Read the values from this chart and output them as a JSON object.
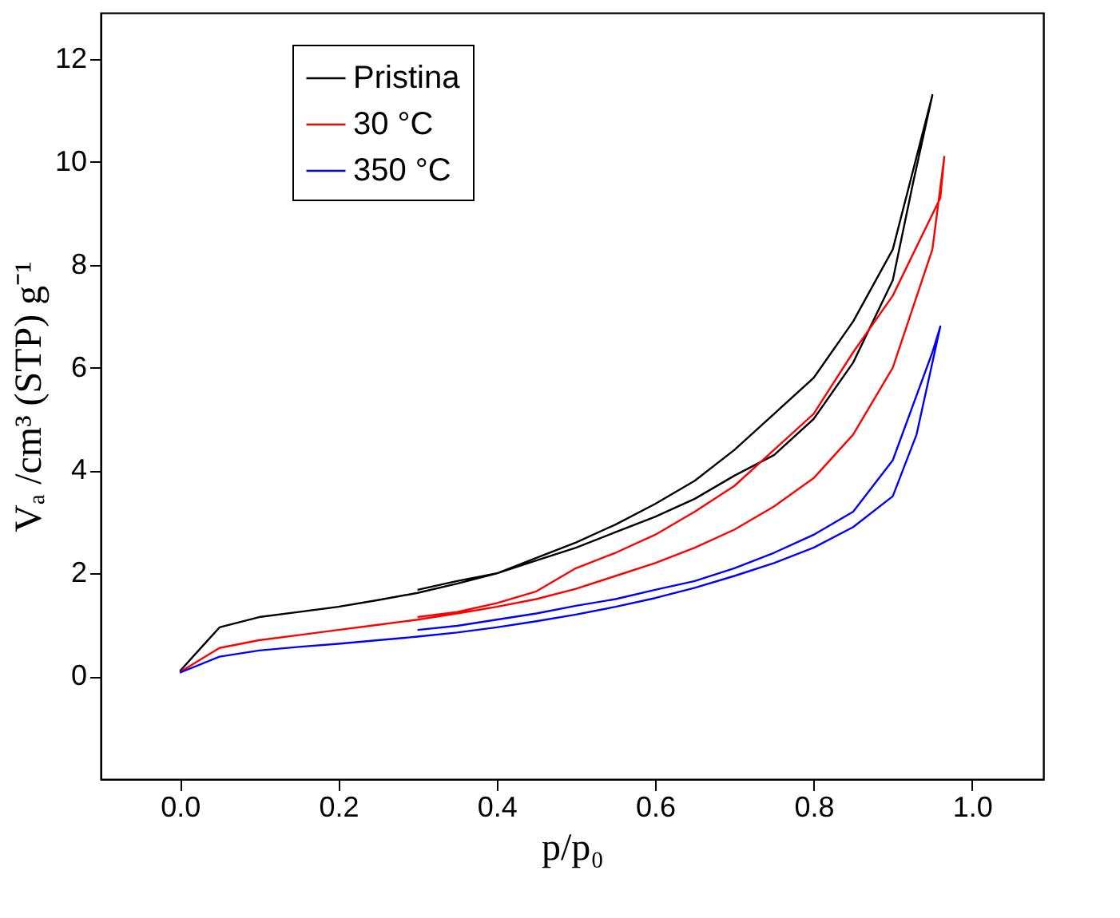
{
  "chart_data": {
    "type": "line",
    "xlabel": "p/p₀",
    "ylabel": "Vₐ /cm³ (STP) g⁻¹",
    "xlim": [
      -0.1,
      1.09
    ],
    "ylim": [
      -2,
      12.9
    ],
    "xticks": [
      {
        "value": 0,
        "label": "0.0"
      },
      0.2,
      0.4,
      0.6,
      0.8,
      {
        "value": 1,
        "label": "1.0"
      }
    ],
    "yticks": [
      0,
      2,
      4,
      6,
      8,
      10,
      12
    ],
    "grid": false,
    "legend": "top left",
    "marker": "none",
    "line_style": "solid",
    "series": [
      {
        "name": "Pristina",
        "color": "#000000",
        "x": [
          0,
          0.05,
          0.1,
          0.15,
          0.2,
          0.25,
          0.3,
          0.35,
          0.4,
          0.45,
          0.5,
          0.55,
          0.6,
          0.65,
          0.7,
          0.75,
          0.8,
          0.85,
          0.9,
          0.95,
          0.925,
          0.9,
          0.85,
          0.8,
          0.75,
          0.7,
          0.65,
          0.6,
          0.55,
          0.5,
          0.45,
          0.4,
          0.35,
          0.3
        ],
        "values": [
          0.1,
          0.95,
          1.15,
          1.25,
          1.35,
          1.48,
          1.62,
          1.8,
          2.0,
          2.3,
          2.6,
          2.95,
          3.35,
          3.8,
          4.4,
          5.1,
          5.8,
          6.9,
          8.3,
          11.3,
          9.55,
          7.7,
          6.1,
          5.0,
          4.3,
          3.9,
          3.45,
          3.1,
          2.8,
          2.5,
          2.25,
          2.0,
          1.85,
          1.68
        ]
      },
      {
        "name": "30 °C",
        "color": "#ff0000",
        "x": [
          0,
          0.05,
          0.1,
          0.15,
          0.2,
          0.25,
          0.3,
          0.35,
          0.4,
          0.45,
          0.5,
          0.55,
          0.6,
          0.65,
          0.7,
          0.75,
          0.8,
          0.85,
          0.9,
          0.95,
          0.965,
          0.96,
          0.9,
          0.85,
          0.8,
          0.75,
          0.7,
          0.65,
          0.6,
          0.55,
          0.5,
          0.45,
          0.4,
          0.35,
          0.3
        ],
        "values": [
          0.08,
          0.55,
          0.7,
          0.8,
          0.9,
          1.0,
          1.1,
          1.22,
          1.35,
          1.5,
          1.7,
          1.95,
          2.2,
          2.5,
          2.85,
          3.3,
          3.85,
          4.7,
          6.0,
          8.3,
          10.1,
          9.3,
          7.4,
          6.3,
          5.1,
          4.4,
          3.7,
          3.2,
          2.75,
          2.4,
          2.1,
          1.65,
          1.42,
          1.25,
          1.15
        ]
      },
      {
        "name": "350 °C",
        "color": "#0000ff",
        "x": [
          0,
          0.05,
          0.1,
          0.15,
          0.2,
          0.25,
          0.3,
          0.35,
          0.4,
          0.45,
          0.5,
          0.55,
          0.6,
          0.65,
          0.7,
          0.75,
          0.8,
          0.85,
          0.9,
          0.93,
          0.96,
          0.95,
          0.9,
          0.85,
          0.8,
          0.75,
          0.7,
          0.65,
          0.6,
          0.55,
          0.5,
          0.45,
          0.4,
          0.35,
          0.3
        ],
        "values": [
          0.07,
          0.38,
          0.5,
          0.57,
          0.63,
          0.7,
          0.77,
          0.85,
          0.95,
          1.07,
          1.2,
          1.35,
          1.52,
          1.72,
          1.95,
          2.2,
          2.5,
          2.9,
          3.5,
          4.7,
          6.8,
          6.3,
          4.2,
          3.2,
          2.75,
          2.4,
          2.1,
          1.85,
          1.68,
          1.5,
          1.37,
          1.22,
          1.1,
          0.98,
          0.9
        ]
      }
    ]
  }
}
